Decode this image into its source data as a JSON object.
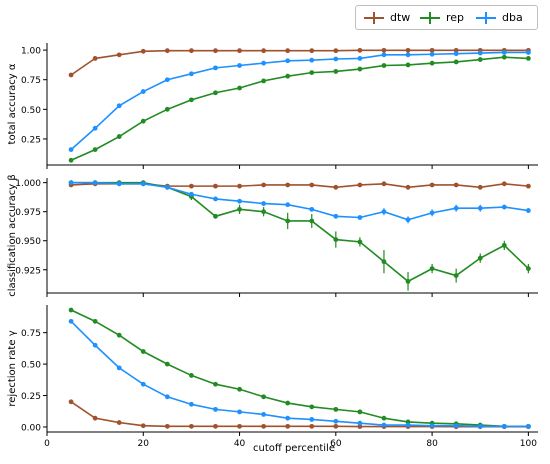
{
  "figure": {
    "xlabel": "cutoff percentile",
    "legend": [
      {
        "name": "dtw",
        "color": "#a0522d"
      },
      {
        "name": "rep",
        "color": "#228b22"
      },
      {
        "name": "dba",
        "color": "#1e90ff"
      }
    ]
  },
  "chart_data": [
    {
      "type": "line",
      "ylabel": "total accuracy α",
      "xlim": [
        0,
        102
      ],
      "ylim": [
        0.03,
        1.06
      ],
      "xticks": [
        0,
        20,
        40,
        60,
        80,
        100
      ],
      "yticks": [
        0.25,
        0.5,
        0.75,
        1.0
      ],
      "ytick_labels": [
        "0.25",
        "0.50",
        "0.75",
        "1.00"
      ],
      "x": [
        5,
        10,
        15,
        20,
        25,
        30,
        35,
        40,
        45,
        50,
        55,
        60,
        65,
        70,
        75,
        80,
        85,
        90,
        95,
        100
      ],
      "series": [
        {
          "name": "dtw",
          "values": [
            0.79,
            0.93,
            0.96,
            0.99,
            0.995,
            0.995,
            0.995,
            0.995,
            0.995,
            0.995,
            0.995,
            0.995,
            0.998,
            0.998,
            0.998,
            0.998,
            0.998,
            0.998,
            0.998,
            0.998
          ],
          "errors": [
            0,
            0,
            0,
            0,
            0,
            0,
            0,
            0,
            0,
            0,
            0,
            0,
            0,
            0,
            0,
            0,
            0,
            0,
            0,
            0
          ]
        },
        {
          "name": "rep",
          "values": [
            0.07,
            0.16,
            0.27,
            0.4,
            0.5,
            0.58,
            0.64,
            0.68,
            0.74,
            0.78,
            0.81,
            0.82,
            0.84,
            0.87,
            0.875,
            0.89,
            0.9,
            0.92,
            0.94,
            0.93
          ],
          "errors": [
            0,
            0,
            0,
            0,
            0,
            0,
            0,
            0,
            0,
            0,
            0,
            0,
            0,
            0,
            0,
            0,
            0,
            0,
            0,
            0
          ]
        },
        {
          "name": "dba",
          "values": [
            0.16,
            0.34,
            0.53,
            0.65,
            0.75,
            0.8,
            0.85,
            0.87,
            0.89,
            0.91,
            0.915,
            0.925,
            0.93,
            0.96,
            0.96,
            0.965,
            0.97,
            0.975,
            0.98,
            0.98
          ],
          "errors": [
            0,
            0,
            0,
            0,
            0,
            0,
            0,
            0,
            0,
            0,
            0,
            0,
            0,
            0,
            0,
            0,
            0,
            0,
            0,
            0
          ]
        }
      ]
    },
    {
      "type": "line",
      "ylabel": "classification accuracy β",
      "xlim": [
        0,
        102
      ],
      "ylim": [
        0.905,
        1.004
      ],
      "xticks": [
        0,
        20,
        40,
        60,
        80,
        100
      ],
      "yticks": [
        0.925,
        0.95,
        0.975,
        1.0
      ],
      "ytick_labels": [
        "0.925",
        "0.950",
        "0.975",
        "1.000"
      ],
      "x": [
        5,
        10,
        15,
        20,
        25,
        30,
        35,
        40,
        45,
        50,
        55,
        60,
        65,
        70,
        75,
        80,
        85,
        90,
        95,
        100
      ],
      "series": [
        {
          "name": "dtw",
          "values": [
            0.998,
            0.999,
            0.999,
            0.999,
            0.997,
            0.997,
            0.997,
            0.997,
            0.998,
            0.998,
            0.998,
            0.996,
            0.998,
            0.999,
            0.996,
            0.998,
            0.998,
            0.996,
            0.999,
            0.997
          ],
          "errors": [
            0,
            0,
            0,
            0,
            0,
            0,
            0,
            0,
            0,
            0,
            0,
            0,
            0,
            0,
            0,
            0,
            0,
            0,
            0,
            0
          ]
        },
        {
          "name": "rep",
          "values": [
            1.0,
            1.0,
            1.0,
            1.0,
            0.996,
            0.988,
            0.971,
            0.977,
            0.975,
            0.967,
            0.967,
            0.951,
            0.949,
            0.932,
            0.915,
            0.926,
            0.92,
            0.935,
            0.946,
            0.926
          ],
          "errors": [
            0,
            0,
            0,
            0,
            0,
            0.003,
            0.002,
            0.004,
            0.004,
            0.007,
            0.006,
            0.007,
            0.004,
            0.01,
            0.008,
            0.004,
            0.006,
            0.004,
            0.004,
            0.004
          ]
        },
        {
          "name": "dba",
          "values": [
            1.0,
            1.0,
            0.999,
            0.999,
            0.996,
            0.99,
            0.986,
            0.984,
            0.982,
            0.981,
            0.977,
            0.971,
            0.97,
            0.975,
            0.968,
            0.974,
            0.978,
            0.978,
            0.979,
            0.976
          ],
          "errors": [
            0,
            0,
            0,
            0,
            0,
            0,
            0,
            0,
            0,
            0,
            0,
            0,
            0,
            0.003,
            0.003,
            0.003,
            0.003,
            0.003,
            0,
            0.002
          ]
        }
      ]
    },
    {
      "type": "line",
      "ylabel": "rejection rate γ",
      "xlim": [
        0,
        102
      ],
      "ylim": [
        -0.04,
        0.97
      ],
      "xticks": [
        0,
        20,
        40,
        60,
        80,
        100
      ],
      "xtick_labels": [
        "0",
        "20",
        "40",
        "60",
        "80",
        "100"
      ],
      "yticks": [
        0.0,
        0.25,
        0.5,
        0.75
      ],
      "ytick_labels": [
        "0.00",
        "0.25",
        "0.50",
        "0.75"
      ],
      "x": [
        5,
        10,
        15,
        20,
        25,
        30,
        35,
        40,
        45,
        50,
        55,
        60,
        65,
        70,
        75,
        80,
        85,
        90,
        95,
        100
      ],
      "series": [
        {
          "name": "dtw",
          "values": [
            0.2,
            0.07,
            0.035,
            0.01,
            0.005,
            0.005,
            0.005,
            0.005,
            0.005,
            0.005,
            0.005,
            0.005,
            0.003,
            0.003,
            0.003,
            0.003,
            0.002,
            0.002,
            0.002,
            0.002
          ],
          "errors": [
            0,
            0,
            0,
            0,
            0,
            0,
            0,
            0,
            0,
            0,
            0,
            0,
            0,
            0,
            0,
            0,
            0,
            0,
            0,
            0
          ]
        },
        {
          "name": "rep",
          "values": [
            0.93,
            0.84,
            0.73,
            0.6,
            0.5,
            0.41,
            0.34,
            0.3,
            0.24,
            0.19,
            0.16,
            0.14,
            0.12,
            0.07,
            0.04,
            0.03,
            0.025,
            0.015,
            0.005,
            0.005
          ],
          "errors": [
            0,
            0,
            0,
            0,
            0,
            0,
            0,
            0,
            0,
            0,
            0,
            0,
            0,
            0,
            0,
            0,
            0,
            0,
            0,
            0
          ]
        },
        {
          "name": "dba",
          "values": [
            0.84,
            0.65,
            0.47,
            0.34,
            0.24,
            0.18,
            0.14,
            0.12,
            0.1,
            0.07,
            0.06,
            0.045,
            0.03,
            0.015,
            0.015,
            0.01,
            0.01,
            0.005,
            0.005,
            0.005
          ],
          "errors": [
            0,
            0,
            0,
            0,
            0,
            0,
            0,
            0,
            0,
            0,
            0,
            0,
            0,
            0,
            0,
            0,
            0,
            0,
            0,
            0
          ]
        }
      ]
    }
  ]
}
